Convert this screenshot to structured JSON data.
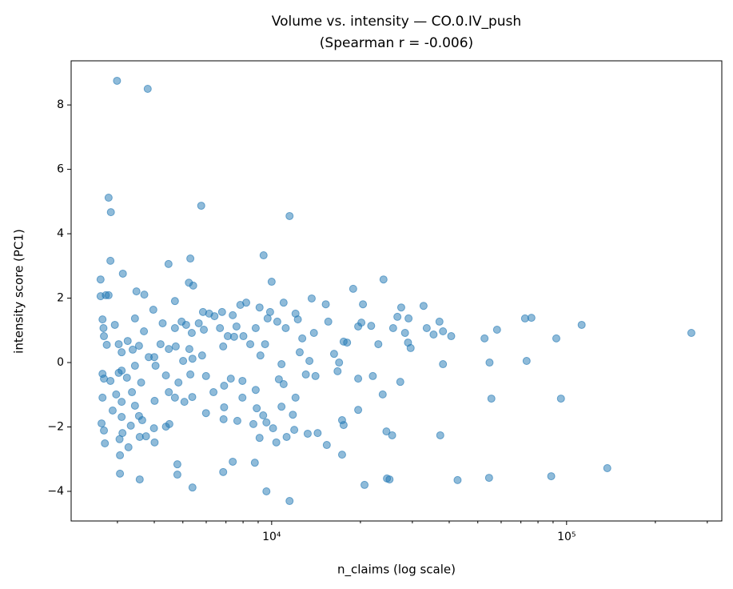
{
  "chart_data": {
    "type": "scatter",
    "title": "Volume vs. intensity — CO.0.IV_push",
    "subtitle": "(Spearman r = -0.006)",
    "xlabel": "n_claims (log scale)",
    "ylabel": "intensity score (PC1)",
    "xscale": "log",
    "color": "#1f77b4",
    "xlim": [
      2090,
      336000
    ],
    "ylim": [
      -4.92,
      9.37
    ],
    "xticks": [
      {
        "value": 10000,
        "label": "10⁴"
      },
      {
        "value": 100000,
        "label": "10⁵"
      }
    ],
    "xminorticks": [
      3000,
      4000,
      5000,
      6000,
      7000,
      8000,
      9000,
      20000,
      30000,
      40000,
      50000,
      60000,
      70000,
      80000,
      90000,
      200000,
      300000
    ],
    "yticks": [
      {
        "value": -4,
        "label": "−4"
      },
      {
        "value": -2,
        "label": "−2"
      },
      0,
      2,
      4,
      6,
      8
    ],
    "x": [
      2990,
      3800,
      2800,
      2850,
      5770,
      11500,
      2840,
      3130,
      4470,
      5300,
      9390,
      2630,
      10000,
      23950,
      5240,
      5420,
      18900,
      2630,
      2740,
      2800,
      3480,
      3700,
      3970,
      4700,
      5850,
      6140,
      6400,
      6790,
      7380,
      7830,
      8200,
      9100,
      9880,
      10980,
      12050,
      13670,
      15260,
      20400,
      27500,
      32740,
      2670,
      2690,
      2940,
      3440,
      3690,
      4270,
      4700,
      4950,
      5130,
      5360,
      5660,
      5890,
      6680,
      7100,
      7600,
      8020,
      8830,
      9690,
      10450,
      11160,
      12270,
      13910,
      15560,
      18020,
      19650,
      20150,
      21750,
      25820,
      26690,
      29120,
      28330,
      33560,
      35400,
      37070,
      38100,
      40630,
      52700,
      58100,
      72300,
      76000,
      92300,
      112500,
      264900,
      2700,
      2760,
      3030,
      3100,
      3250,
      3380,
      3550,
      3830,
      4000,
      4200,
      4480,
      4730,
      5010,
      5260,
      5390,
      5810,
      6850,
      7460,
      8460,
      9500,
      9160,
      10800,
      12450,
      12700,
      13430,
      16280,
      16930,
      17540,
      23000,
      29000,
      29600,
      38100,
      54800,
      73200,
      2670,
      2700,
      2840,
      3030,
      3100,
      3230,
      3440,
      3610,
      4040,
      4380,
      4830,
      5300,
      5990,
      6350,
      6900,
      7270,
      7960,
      8830,
      10580,
      10980,
      13060,
      14080,
      16730,
      19650,
      22030,
      27300,
      2670,
      2970,
      3100,
      3360,
      3440,
      4010,
      4480,
      4700,
      5060,
      5380,
      5990,
      6900,
      7960,
      8900,
      9360,
      10800,
      12050,
      11800,
      19650,
      23800,
      55600,
      95700,
      2650,
      2700,
      2890,
      3100,
      3330,
      3550,
      3640,
      3990,
      4380,
      4500,
      6870,
      7650,
      8670,
      9600,
      10110,
      11930,
      13250,
      14320,
      15380,
      17330,
      17540,
      24500,
      25620,
      37300,
      2720,
      3050,
      3120,
      3270,
      3570,
      3750,
      4010,
      9100,
      10370,
      11240,
      3060,
      6850,
      7380,
      8770,
      4790,
      4790,
      3060,
      3570,
      5390,
      9600,
      11500,
      20650,
      24600,
      25100,
      42700,
      54600,
      88700,
      137400,
      17330
    ],
    "values": [
      8.75,
      8.5,
      5.12,
      4.67,
      4.87,
      4.55,
      3.16,
      2.76,
      3.06,
      3.23,
      3.33,
      2.58,
      2.51,
      2.58,
      2.48,
      2.39,
      2.29,
      2.06,
      2.09,
      2.09,
      2.21,
      2.11,
      1.64,
      1.91,
      1.57,
      1.52,
      1.44,
      1.57,
      1.47,
      1.79,
      1.86,
      1.71,
      1.57,
      1.86,
      1.52,
      1.99,
      1.81,
      1.81,
      1.71,
      1.76,
      1.34,
      1.07,
      1.17,
      1.37,
      0.97,
      1.22,
      1.07,
      1.27,
      1.17,
      0.92,
      1.22,
      1.02,
      1.07,
      0.82,
      1.12,
      0.82,
      1.07,
      1.37,
      1.27,
      1.07,
      1.34,
      0.92,
      1.27,
      0.62,
      1.12,
      1.24,
      1.14,
      1.07,
      1.42,
      1.37,
      0.92,
      1.07,
      0.87,
      1.27,
      0.97,
      0.82,
      0.75,
      1.02,
      1.37,
      1.39,
      0.75,
      1.17,
      0.92,
      0.82,
      0.55,
      0.57,
      0.32,
      0.67,
      0.4,
      0.52,
      0.17,
      0.17,
      0.57,
      0.42,
      0.5,
      0.05,
      0.42,
      0.12,
      0.22,
      0.5,
      0.8,
      0.57,
      0.57,
      0.22,
      -0.05,
      0.32,
      0.75,
      0.05,
      0.27,
      0.0,
      0.65,
      0.57,
      0.62,
      0.45,
      -0.05,
      0.0,
      0.05,
      -0.35,
      -0.5,
      -0.57,
      -0.32,
      -0.25,
      -0.47,
      -0.1,
      -0.62,
      -0.1,
      -0.4,
      -0.62,
      -0.37,
      -0.42,
      -0.92,
      -0.72,
      -0.5,
      -0.57,
      -0.85,
      -0.52,
      -0.67,
      -0.37,
      -0.42,
      -0.27,
      -0.5,
      -0.42,
      -0.6,
      -1.09,
      -0.99,
      -1.22,
      -0.92,
      -1.34,
      -1.19,
      -0.92,
      -1.09,
      -1.22,
      -1.07,
      -1.57,
      -1.39,
      -1.09,
      -1.42,
      -1.64,
      -1.37,
      -1.09,
      -1.62,
      -1.47,
      -0.99,
      -1.12,
      -1.12,
      -1.89,
      -2.11,
      -1.49,
      -1.69,
      -1.96,
      -1.66,
      -1.79,
      -2.04,
      -1.99,
      -1.91,
      -1.76,
      -1.81,
      -1.91,
      -1.86,
      -2.04,
      -2.09,
      -2.21,
      -2.19,
      -2.56,
      -1.79,
      -1.94,
      -2.14,
      -2.26,
      -2.26,
      -2.51,
      -2.38,
      -2.19,
      -2.63,
      -2.31,
      -2.29,
      -2.48,
      -2.34,
      -2.48,
      -2.31,
      -2.88,
      -3.4,
      -3.08,
      -3.11,
      -3.16,
      -3.48,
      -3.45,
      -3.63,
      -3.88,
      -4.0,
      -4.3,
      -3.8,
      -3.6,
      -3.63,
      -3.65,
      -3.58,
      -3.53,
      -3.28,
      -2.86
    ]
  }
}
